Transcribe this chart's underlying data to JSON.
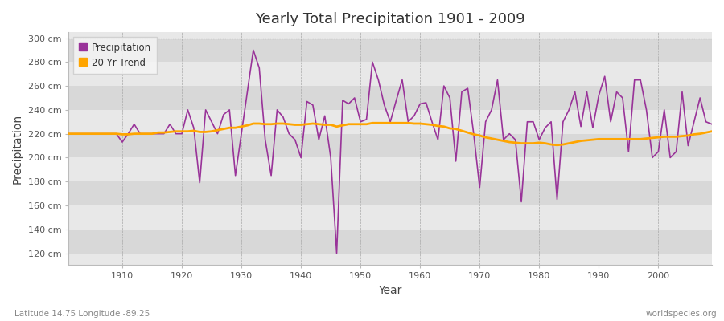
{
  "title": "Yearly Total Precipitation 1901 - 2009",
  "xlabel": "Year",
  "ylabel": "Precipitation",
  "lat_lon_label": "Latitude 14.75 Longitude -89.25",
  "worldspecies_label": "worldspecies.org",
  "precip_color": "#993399",
  "trend_color": "#FFA500",
  "plot_bg_color": "#e8e8e8",
  "fig_bg_color": "#ffffff",
  "ylim": [
    110,
    305
  ],
  "ytick_values": [
    120,
    140,
    160,
    180,
    200,
    220,
    240,
    260,
    280,
    300
  ],
  "ytick_labels": [
    "120 cm",
    "140 cm",
    "160 cm",
    "180 cm",
    "200 cm",
    "220 cm",
    "240 cm",
    "260 cm",
    "280 cm",
    "300 cm"
  ],
  "xlim_start": 1901,
  "xlim_end": 2009,
  "years": [
    1901,
    1902,
    1903,
    1904,
    1905,
    1906,
    1907,
    1908,
    1909,
    1910,
    1911,
    1912,
    1913,
    1914,
    1915,
    1916,
    1917,
    1918,
    1919,
    1920,
    1921,
    1922,
    1923,
    1924,
    1925,
    1926,
    1927,
    1928,
    1929,
    1930,
    1931,
    1932,
    1933,
    1934,
    1935,
    1936,
    1937,
    1938,
    1939,
    1940,
    1941,
    1942,
    1943,
    1944,
    1945,
    1946,
    1947,
    1948,
    1949,
    1950,
    1951,
    1952,
    1953,
    1954,
    1955,
    1956,
    1957,
    1958,
    1959,
    1960,
    1961,
    1962,
    1963,
    1964,
    1965,
    1966,
    1967,
    1968,
    1969,
    1970,
    1971,
    1972,
    1973,
    1974,
    1975,
    1976,
    1977,
    1978,
    1979,
    1980,
    1981,
    1982,
    1983,
    1984,
    1985,
    1986,
    1987,
    1988,
    1989,
    1990,
    1991,
    1992,
    1993,
    1994,
    1995,
    1996,
    1997,
    1998,
    1999,
    2000,
    2001,
    2002,
    2003,
    2004,
    2005,
    2006,
    2007,
    2008,
    2009
  ],
  "precip": [
    220,
    220,
    220,
    220,
    220,
    220,
    220,
    220,
    220,
    213,
    220,
    228,
    220,
    220,
    220,
    220,
    220,
    228,
    220,
    220,
    240,
    225,
    179,
    240,
    230,
    220,
    236,
    240,
    185,
    220,
    255,
    290,
    275,
    215,
    185,
    240,
    234,
    220,
    215,
    200,
    247,
    244,
    215,
    235,
    200,
    120,
    248,
    245,
    250,
    230,
    232,
    280,
    265,
    244,
    230,
    248,
    265,
    230,
    235,
    245,
    246,
    230,
    215,
    260,
    250,
    197,
    255,
    258,
    220,
    175,
    230,
    240,
    265,
    215,
    220,
    215,
    163,
    230,
    230,
    215,
    225,
    230,
    165,
    230,
    240,
    255,
    226,
    255,
    225,
    252,
    268,
    230,
    255,
    250,
    205,
    265,
    265,
    240,
    200,
    205,
    240,
    200,
    205,
    255,
    210,
    230,
    250,
    230,
    228
  ],
  "trend": [
    220.0,
    220.0,
    220.0,
    220.0,
    220.0,
    220.0,
    220.0,
    220.0,
    220.0,
    219.5,
    219.5,
    220.0,
    220.0,
    220.0,
    220.0,
    221.0,
    221.0,
    221.5,
    222.0,
    222.0,
    222.0,
    222.5,
    221.5,
    221.5,
    222.0,
    223.0,
    224.0,
    225.0,
    225.0,
    226.0,
    227.0,
    228.5,
    228.5,
    228.0,
    228.0,
    228.5,
    228.5,
    228.0,
    227.5,
    227.5,
    228.0,
    228.5,
    228.0,
    227.5,
    227.5,
    226.0,
    227.0,
    228.0,
    228.0,
    228.0,
    228.0,
    229.0,
    229.0,
    229.0,
    229.0,
    229.0,
    229.0,
    229.0,
    228.5,
    228.5,
    228.0,
    227.5,
    226.5,
    226.0,
    224.5,
    224.0,
    222.5,
    221.0,
    219.5,
    218.5,
    217.0,
    216.0,
    215.0,
    214.0,
    213.0,
    212.5,
    212.0,
    212.0,
    212.0,
    212.5,
    212.0,
    211.0,
    210.5,
    211.0,
    212.0,
    213.0,
    214.0,
    214.5,
    215.0,
    215.5,
    215.5,
    215.5,
    215.5,
    215.5,
    215.5,
    215.5,
    215.5,
    216.0,
    216.5,
    217.0,
    217.5,
    217.5,
    217.5,
    218.0,
    218.5,
    219.5,
    220.0,
    221.0,
    222.0
  ]
}
